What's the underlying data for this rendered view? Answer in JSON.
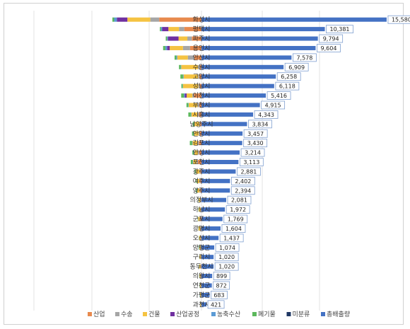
{
  "chart_data": {
    "type": "bar",
    "stacked": true,
    "orientation": "horizontal",
    "categories": [
      "화성시",
      "평택시",
      "파주시",
      "용인시",
      "안산시",
      "수원시",
      "고양시",
      "성남시",
      "이천시",
      "부천시",
      "시흥시",
      "남양주시",
      "안양시",
      "김포시",
      "안성시",
      "포천시",
      "광주시",
      "여주시",
      "양주시",
      "의정부시",
      "하남시",
      "군포시",
      "광명시",
      "오산시",
      "양평군",
      "구리시",
      "동두천시",
      "의왕시",
      "연천군",
      "가평군",
      "과천시"
    ],
    "total_series": {
      "name": "총배출량",
      "values": [
        15580,
        10381,
        9794,
        9604,
        7578,
        6909,
        6258,
        6118,
        5416,
        4915,
        4343,
        3834,
        3457,
        3430,
        3214,
        3113,
        2881,
        2402,
        2394,
        2081,
        1972,
        1769,
        1604,
        1437,
        1074,
        1020,
        1020,
        899,
        872,
        683,
        421
      ]
    },
    "series": [
      {
        "name": "산업",
        "values": [
          4800,
          1950,
          1100,
          1300,
          800,
          150,
          250,
          200,
          850,
          250,
          300,
          120,
          180,
          300,
          250,
          400,
          120,
          120,
          120,
          30,
          30,
          120,
          60,
          60,
          50,
          40,
          60,
          50,
          30,
          20,
          20
        ]
      },
      {
        "name": "수송",
        "values": [
          1000,
          600,
          500,
          800,
          750,
          250,
          130,
          150,
          180,
          200,
          150,
          120,
          150,
          160,
          150,
          150,
          100,
          110,
          100,
          100,
          80,
          80,
          80,
          60,
          60,
          50,
          60,
          60,
          40,
          40,
          30
        ]
      },
      {
        "name": "건물",
        "values": [
          2600,
          1200,
          1000,
          1500,
          1200,
          1900,
          1650,
          1750,
          650,
          1000,
          700,
          550,
          500,
          550,
          400,
          400,
          400,
          300,
          300,
          180,
          200,
          180,
          200,
          150,
          150,
          130,
          150,
          120,
          120,
          100,
          80
        ]
      },
      {
        "name": "산업공정",
        "values": [
          1200,
          700,
          1200,
          300,
          0,
          0,
          0,
          0,
          200,
          0,
          0,
          0,
          0,
          0,
          0,
          0,
          0,
          0,
          0,
          0,
          0,
          0,
          0,
          0,
          0,
          0,
          0,
          0,
          0,
          0,
          0
        ]
      },
      {
        "name": "농축수산",
        "values": [
          300,
          150,
          100,
          200,
          100,
          50,
          60,
          30,
          120,
          50,
          60,
          50,
          40,
          60,
          80,
          60,
          40,
          40,
          40,
          10,
          10,
          20,
          10,
          10,
          40,
          10,
          20,
          10,
          30,
          30,
          5
        ]
      },
      {
        "name": "폐기물",
        "values": [
          200,
          120,
          150,
          250,
          200,
          200,
          300,
          150,
          300,
          200,
          280,
          150,
          200,
          250,
          150,
          200,
          100,
          80,
          80,
          30,
          30,
          30,
          20,
          20,
          40,
          20,
          20,
          20,
          20,
          20,
          10
        ]
      },
      {
        "name": "미분류",
        "values": [
          0,
          0,
          0,
          0,
          0,
          0,
          0,
          0,
          0,
          0,
          0,
          0,
          0,
          0,
          0,
          0,
          0,
          0,
          0,
          0,
          0,
          0,
          0,
          0,
          0,
          0,
          0,
          0,
          0,
          0,
          0
        ]
      }
    ],
    "xlim": [
      -19000,
      16000
    ],
    "grid": true,
    "legend_position": "bottom",
    "colors": {
      "산업": "#e88a4e",
      "수송": "#a6a6a6",
      "건물": "#f5c342",
      "산업공정": "#7030a0",
      "농축수산": "#5b9bd5",
      "폐기물": "#5cb85c",
      "미분류": "#1f3864",
      "총배출량": "#4472c4"
    }
  }
}
